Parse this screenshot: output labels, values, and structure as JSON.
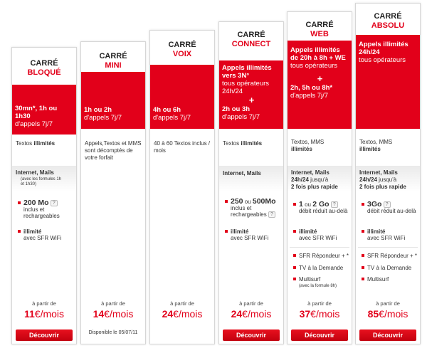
{
  "plans": [
    {
      "title1": "CARRÉ",
      "title2": "BLOQUÉ",
      "red_main": "30mn*, 1h ou 1h30",
      "red_sub": "d'appels 7j/7",
      "sms_a": "Textos ",
      "sms_b": "illimités",
      "net_title": "Internet, Mails",
      "net_note": "(avec les formules 1h et 1h30)",
      "f1_big": "200 Mo",
      "f1_rest": "inclus et rechargeables",
      "qm": "?",
      "f2_b": "illimité",
      "f2_rest": "avec SFR WiFi",
      "from": "à partir de",
      "price": "11",
      "unit": "€/mois",
      "button": "Découvrir"
    },
    {
      "title1": "CARRÉ",
      "title2": "MINI",
      "red_main": "1h ou 2h",
      "red_sub": "d'appels 7j/7",
      "sms_text": "Appels,Textos et MMS sont décomptés de votre forfait",
      "from": "à partir de",
      "price": "14",
      "unit": "€/mois",
      "button": "Découvrir",
      "dispo": "Disponible le 05/07/11"
    },
    {
      "title1": "CARRÉ",
      "title2": "VOIX",
      "red_main": "4h ou 6h",
      "red_sub": "d'appels 7j/7",
      "sms_text": "40 à 60 Textos inclus / mois",
      "from": "à partir de",
      "price": "24",
      "unit": "€/mois",
      "button": "Découvrir"
    },
    {
      "title1": "CARRÉ",
      "title2": "CONNECT",
      "red_top_main": "Appels illimités vers 3N°",
      "red_top_sub": "tous opérateurs 24h/24",
      "plus": "+",
      "red_main": "2h ou 3h",
      "red_sub": "d'appels 7j/7",
      "sms_a": "Textos ",
      "sms_b": "illimités",
      "net_title": "Internet, Mails",
      "f1_big": "250",
      "f1_mid": " ou ",
      "f1_big2": "500Mo",
      "f1_rest": "inclus et rechargeables",
      "qm": "?",
      "f2_b": "illimité",
      "f2_rest": "avec SFR WiFi",
      "from": "à partir de",
      "price": "24",
      "unit": "€/mois",
      "button": "Découvrir"
    },
    {
      "title1": "CARRÉ",
      "title2": "WEB",
      "red_top_main": "Appels illimités de 20h à 8h + WE",
      "red_top_sub": "tous opérateurs",
      "plus": "+",
      "red_main": "2h, 5h ou 8h*",
      "red_sub": "d'appels 7j/7",
      "sms_a": "Textos, MMS ",
      "sms_b": "illimités",
      "net_title": "Internet, Mails 24h/24",
      "net_jusqu": " jusqu'à",
      "net_speed": "2 fois plus rapide",
      "f1_big": "1",
      "f1_mid": " ou ",
      "f1_big2": "2 Go",
      "qm": "?",
      "f1_rest": "débit réduit au-delà",
      "f2_b": "illimité",
      "f2_rest": "avec SFR WiFi",
      "f3": "SFR Répondeur + *",
      "f4": "TV à la Demande",
      "f5": "Multisurf",
      "f5_note": "(avec la formule 8h)",
      "from": "à partir de",
      "price": "37",
      "unit": "€/mois",
      "button": "Découvrir"
    },
    {
      "title1": "CARRÉ",
      "title2": "ABSOLU",
      "red_top_main": "Appels illimités 24h/24",
      "red_top_sub": "tous opérateurs",
      "sms_a": "Textos, MMS ",
      "sms_b": "illimités",
      "net_title": "Internet, Mails 24h/24",
      "net_jusqu": " jusqu'à",
      "net_speed": "2 fois plus rapide",
      "f1_big": "3Go",
      "qm": "?",
      "f1_rest": "débit réduit au-delà",
      "f2_b": "illimité",
      "f2_rest": "avec SFR WiFi",
      "f3": "SFR Répondeur + *",
      "f4": "TV à la Demande",
      "f5": "Multisurf",
      "from": "à partir de",
      "price": "85",
      "unit": "€/mois",
      "button": "Découvrir"
    }
  ],
  "colors": {
    "accent": "#e2001a",
    "button": "#d4001a"
  }
}
